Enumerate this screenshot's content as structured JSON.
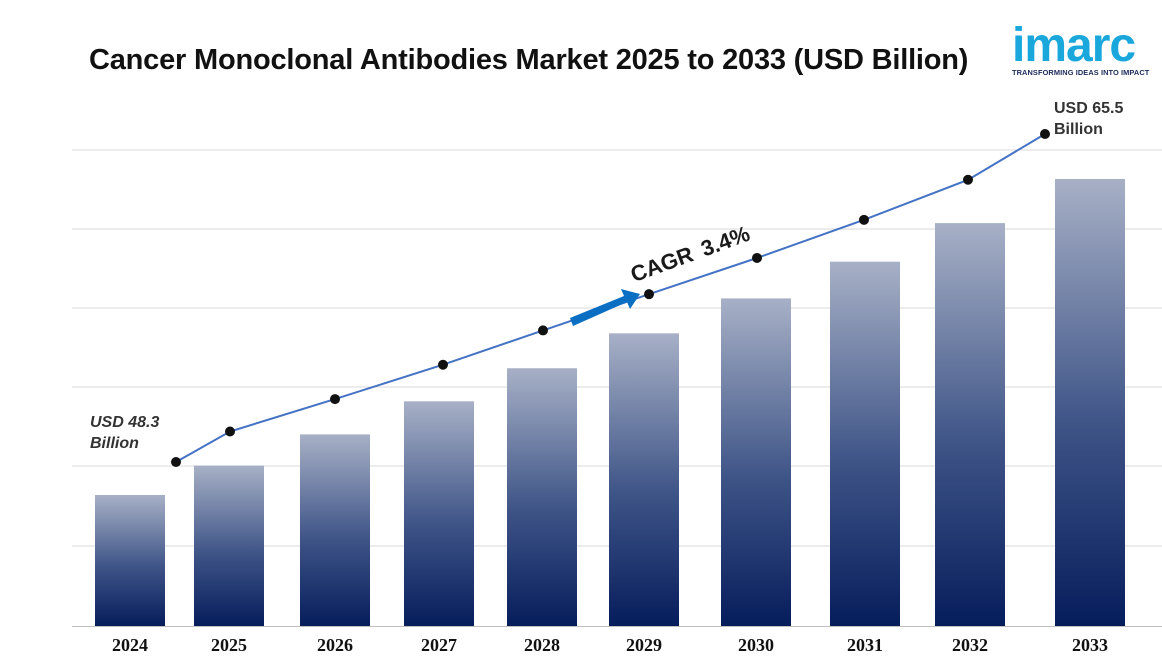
{
  "header": {
    "title": "Cancer Monoclonal Antibodies Market 2025 to 2033 (USD Billion)"
  },
  "logo": {
    "wordmark": "imarc",
    "tagline": "TRANSFORMING IDEAS INTO IMPACT",
    "color": "#1aa7dc",
    "tagline_color": "#1a2a5a"
  },
  "annotations": {
    "start": {
      "line1": "USD 48.3",
      "line2": "Billion"
    },
    "end": {
      "line1": "USD 65.5",
      "line2": "Billion"
    },
    "cagr": "CAGR 3.4%",
    "arrow_color": "#0a6fc2"
  },
  "chart_data": {
    "type": "bar",
    "title": "Cancer Monoclonal Antibodies Market 2025 to 2033 (USD Billion)",
    "xlabel": "",
    "ylabel": "",
    "categories": [
      "2024",
      "2025",
      "2026",
      "2027",
      "2028",
      "2029",
      "2030",
      "2031",
      "2032",
      "2033"
    ],
    "values": [
      48.3,
      49.9,
      51.6,
      53.4,
      55.2,
      57.1,
      59.0,
      61.0,
      63.1,
      65.5
    ],
    "ylim": [
      0,
      100
    ],
    "grid": true,
    "overlay_line": {
      "type": "line",
      "values": [
        48.3,
        49.9,
        51.6,
        53.4,
        55.2,
        57.1,
        59.0,
        61.0,
        63.1,
        65.5
      ],
      "color": "#4472c4",
      "marker_color": "#111111"
    },
    "bar_colors": {
      "top": "#a7b0c6",
      "bottom": "#061d5c"
    }
  }
}
